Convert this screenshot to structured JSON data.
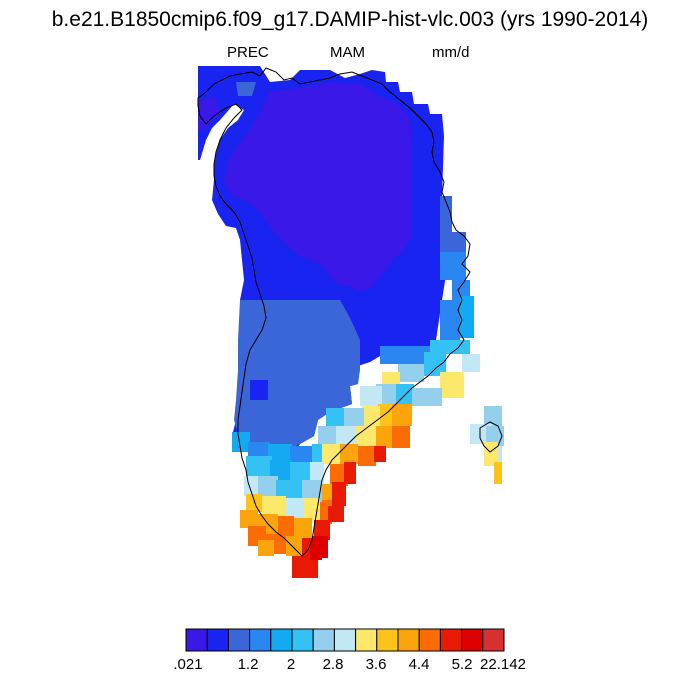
{
  "figure": {
    "title": "b.e21.B1850cmip6.f09_g17.DAMIP-hist-vlc.003 (yrs 1990-2014)",
    "left_string": "PREC",
    "center_string": "MAM",
    "right_string": "mm/d"
  },
  "colorbar": {
    "colors": [
      "#3a18e8",
      "#1a24f0",
      "#3a66d8",
      "#2a86f0",
      "#14aaf2",
      "#34c2f4",
      "#94d0ee",
      "#c2e8f6",
      "#fce86a",
      "#fcc418",
      "#fca40c",
      "#fc6c04",
      "#e81a04",
      "#de0000",
      "#d63030"
    ],
    "labels": [
      ".021",
      "1.2",
      "2",
      "2.8",
      "3.6",
      "4.4",
      "5.2",
      "22.142"
    ]
  }
}
